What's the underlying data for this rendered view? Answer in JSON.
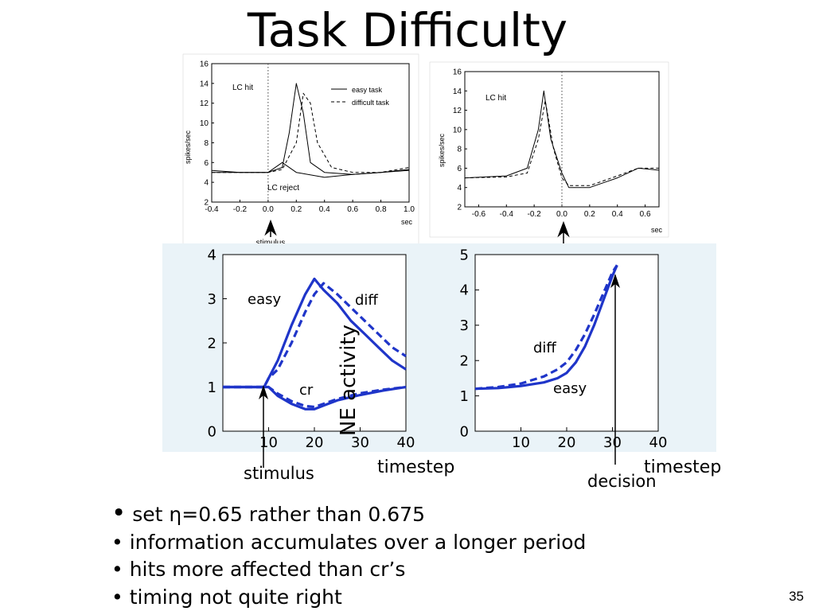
{
  "title": "Task Difficulty",
  "page_number": "35",
  "bullets": [
    "set η=0.65 rather than 0.675",
    "information accumulates over a longer period",
    "hits more affected than cr’s",
    "timing not quite right"
  ],
  "colors": {
    "model_blue": "#1f35c9",
    "data_black": "#000000"
  },
  "chart_data": [
    {
      "type": "line",
      "xlabel": "sec",
      "ylabel": "spikes/sec",
      "xlim": [
        -0.4,
        1.0
      ],
      "ylim": [
        2,
        16
      ],
      "x_ticks": [
        "-0.4",
        "-0.2",
        "0.0",
        "0.2",
        "0.4",
        "0.6",
        "0.8",
        "1.0"
      ],
      "y_ticks": [
        "2",
        "4",
        "6",
        "8",
        "10",
        "12",
        "14",
        "16"
      ],
      "annotations": [
        "LC hit",
        "LC reject"
      ],
      "arrow_label": "stimulus",
      "marker_x": 0.0,
      "legend": [
        "easy task",
        "difficult task"
      ],
      "legend_position": "top-right",
      "series": [
        {
          "name": "easy task",
          "style": "solid",
          "x": [
            -0.4,
            -0.2,
            0.0,
            0.1,
            0.15,
            0.2,
            0.25,
            0.3,
            0.4,
            0.6,
            0.8,
            1.0
          ],
          "y": [
            5,
            5,
            5,
            5.5,
            9,
            14,
            11,
            6,
            5,
            4.8,
            5,
            5.3
          ]
        },
        {
          "name": "difficult task",
          "style": "dashed",
          "x": [
            -0.4,
            -0.2,
            0.0,
            0.1,
            0.2,
            0.25,
            0.3,
            0.35,
            0.45,
            0.6,
            0.8,
            1.0
          ],
          "y": [
            5,
            5,
            5,
            5.3,
            8,
            13,
            12,
            8,
            5.5,
            5,
            5,
            5.5
          ]
        },
        {
          "name": "LC reject",
          "style": "solid",
          "x": [
            -0.4,
            -0.2,
            0.0,
            0.1,
            0.2,
            0.4,
            0.6,
            0.8,
            1.0
          ],
          "y": [
            5.2,
            5,
            5,
            6,
            5,
            4.5,
            4.8,
            5,
            5.2
          ]
        }
      ]
    },
    {
      "type": "line",
      "xlabel": "sec",
      "ylabel": "spikes/sec",
      "xlim": [
        -0.7,
        0.7
      ],
      "ylim": [
        2,
        16
      ],
      "x_ticks": [
        "-0.6",
        "-0.4",
        "-0.2",
        "0.0",
        "0.2",
        "0.4",
        "0.6"
      ],
      "y_ticks": [
        "2",
        "4",
        "6",
        "8",
        "10",
        "12",
        "14",
        "16"
      ],
      "annotations": [
        "LC hit"
      ],
      "marker_x": 0.0,
      "series": [
        {
          "name": "easy task",
          "style": "solid",
          "x": [
            -0.7,
            -0.4,
            -0.25,
            -0.17,
            -0.13,
            -0.08,
            0.0,
            0.05,
            0.2,
            0.4,
            0.55,
            0.7
          ],
          "y": [
            5,
            5.2,
            6,
            10,
            14,
            9,
            5.5,
            4,
            4,
            5,
            6,
            5.8
          ]
        },
        {
          "name": "difficult task",
          "style": "dashed",
          "x": [
            -0.7,
            -0.4,
            -0.25,
            -0.17,
            -0.12,
            -0.06,
            0.0,
            0.05,
            0.2,
            0.4,
            0.55,
            0.7
          ],
          "y": [
            5,
            5.1,
            5.5,
            9,
            13,
            8,
            5,
            4.2,
            4.2,
            5.2,
            6,
            6
          ]
        }
      ]
    },
    {
      "type": "line",
      "ylabel": "NE activity",
      "xlabel": "timestep",
      "arrow_label": "stimulus",
      "marker_x": 10,
      "xlim": [
        0,
        40
      ],
      "ylim": [
        0,
        4
      ],
      "x_ticks": [
        "10",
        "20",
        "30",
        "40"
      ],
      "y_ticks": [
        "0",
        "1",
        "2",
        "3",
        "4"
      ],
      "annotations": [
        "easy",
        "diff",
        "cr"
      ],
      "series": [
        {
          "name": "easy",
          "style": "solid",
          "x": [
            0,
            9,
            10,
            12,
            15,
            18,
            20,
            22,
            25,
            28,
            31,
            34,
            37,
            40
          ],
          "y": [
            1,
            1,
            1.2,
            1.6,
            2.4,
            3.1,
            3.45,
            3.2,
            2.9,
            2.5,
            2.2,
            1.9,
            1.6,
            1.4
          ]
        },
        {
          "name": "diff",
          "style": "dashed",
          "x": [
            0,
            9,
            10,
            12,
            15,
            18,
            20,
            22,
            25,
            28,
            31,
            34,
            37,
            40
          ],
          "y": [
            1,
            1,
            1.2,
            1.4,
            2.0,
            2.7,
            3.1,
            3.35,
            3.1,
            2.8,
            2.5,
            2.2,
            1.9,
            1.7
          ]
        },
        {
          "name": "cr",
          "style": "solid",
          "x": [
            0,
            9,
            10,
            12,
            15,
            18,
            20,
            22,
            25,
            30,
            35,
            40
          ],
          "y": [
            1,
            1,
            1.0,
            0.8,
            0.62,
            0.5,
            0.5,
            0.58,
            0.7,
            0.82,
            0.92,
            1.0
          ]
        },
        {
          "name": "cr",
          "style": "dashed",
          "x": [
            0,
            9,
            10,
            12,
            15,
            18,
            20,
            22,
            25,
            30,
            35,
            40
          ],
          "y": [
            1,
            1,
            1.0,
            0.85,
            0.68,
            0.57,
            0.55,
            0.62,
            0.73,
            0.86,
            0.94,
            1.0
          ]
        }
      ]
    },
    {
      "type": "line",
      "xlabel": "timestep",
      "arrow_label": "decision",
      "marker_x": 30,
      "xlim": [
        0,
        40
      ],
      "ylim": [
        0,
        5
      ],
      "x_ticks": [
        "10",
        "20",
        "30",
        "40"
      ],
      "y_ticks": [
        "0",
        "1",
        "2",
        "3",
        "4",
        "5"
      ],
      "annotations": [
        "diff",
        "easy"
      ],
      "series": [
        {
          "name": "easy",
          "style": "solid",
          "x": [
            0,
            5,
            10,
            15,
            18,
            20,
            22,
            24,
            26,
            28,
            30,
            31
          ],
          "y": [
            1.2,
            1.22,
            1.28,
            1.38,
            1.5,
            1.65,
            1.95,
            2.4,
            3.0,
            3.7,
            4.4,
            4.7
          ]
        },
        {
          "name": "diff",
          "style": "dashed",
          "x": [
            0,
            5,
            10,
            15,
            18,
            20,
            22,
            24,
            26,
            28,
            30,
            31
          ],
          "y": [
            1.2,
            1.25,
            1.35,
            1.55,
            1.75,
            1.95,
            2.3,
            2.75,
            3.3,
            3.9,
            4.5,
            4.7
          ]
        }
      ]
    }
  ]
}
